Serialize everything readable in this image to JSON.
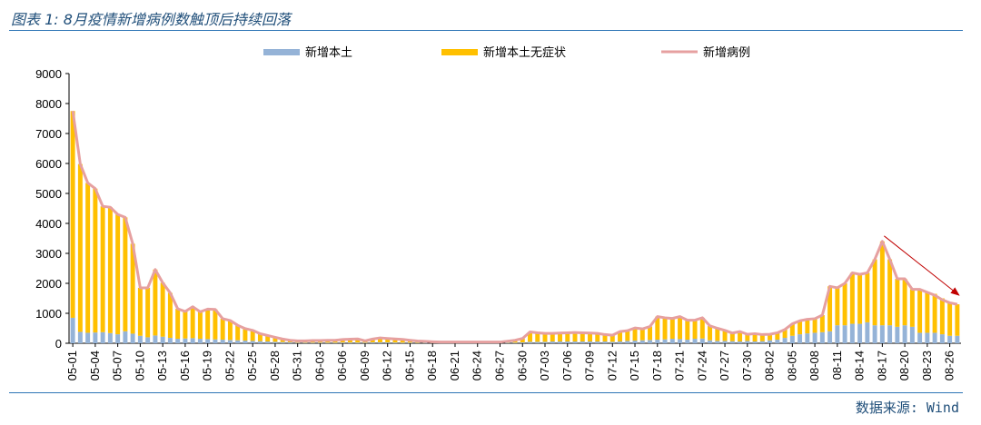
{
  "header": {
    "title": "图表 1: 8月疫情新增病例数触顶后持续回落"
  },
  "footer": {
    "source": "数据来源: Wind"
  },
  "colors": {
    "local": "#95b3d7",
    "asymptomatic": "#ffc000",
    "total": "#e6a0a0",
    "arrow": "#c00000",
    "axis": "#000000",
    "rule": "#2e75b6"
  },
  "chart_data": {
    "type": "bar",
    "stacked": true,
    "ylim": [
      0,
      9000
    ],
    "yticks": [
      0,
      1000,
      2000,
      3000,
      4000,
      5000,
      6000,
      7000,
      8000,
      9000
    ],
    "legend_position": "top",
    "grid": false,
    "series": [
      {
        "name": "新增本土",
        "kind": "bar"
      },
      {
        "name": "新增本土无症状",
        "kind": "bar"
      },
      {
        "name": "新增病例",
        "kind": "line"
      }
    ],
    "dates": [
      "05-01",
      "05-02",
      "05-03",
      "05-04",
      "05-05",
      "05-06",
      "05-07",
      "05-08",
      "05-09",
      "05-10",
      "05-11",
      "05-12",
      "05-13",
      "05-14",
      "05-15",
      "05-16",
      "05-17",
      "05-18",
      "05-19",
      "05-20",
      "05-21",
      "05-22",
      "05-23",
      "05-24",
      "05-25",
      "05-26",
      "05-27",
      "05-28",
      "05-29",
      "05-30",
      "05-31",
      "06-01",
      "06-02",
      "06-03",
      "06-04",
      "06-05",
      "06-06",
      "06-07",
      "06-08",
      "06-09",
      "06-10",
      "06-11",
      "06-12",
      "06-13",
      "06-14",
      "06-15",
      "06-16",
      "06-17",
      "06-18",
      "06-19",
      "06-20",
      "06-21",
      "06-22",
      "06-23",
      "06-24",
      "06-25",
      "06-26",
      "06-27",
      "06-28",
      "06-29",
      "06-30",
      "07-01",
      "07-02",
      "07-03",
      "07-04",
      "07-05",
      "07-06",
      "07-07",
      "07-08",
      "07-09",
      "07-10",
      "07-11",
      "07-12",
      "07-13",
      "07-14",
      "07-15",
      "07-16",
      "07-17",
      "07-18",
      "07-19",
      "07-20",
      "07-21",
      "07-22",
      "07-23",
      "07-24",
      "07-25",
      "07-26",
      "07-27",
      "07-28",
      "07-29",
      "07-30",
      "07-31",
      "08-01",
      "08-02",
      "08-03",
      "08-04",
      "08-05",
      "08-06",
      "08-07",
      "08-08",
      "08-09",
      "08-10",
      "08-11",
      "08-12",
      "08-13",
      "08-14",
      "08-15",
      "08-16",
      "08-17",
      "08-18",
      "08-19",
      "08-20",
      "08-21",
      "08-22",
      "08-23",
      "08-24",
      "08-25",
      "08-26",
      "08-27"
    ],
    "xticks": [
      "05-01",
      "05-04",
      "05-07",
      "05-10",
      "05-13",
      "05-16",
      "05-19",
      "05-22",
      "05-25",
      "05-28",
      "05-31",
      "06-03",
      "06-06",
      "06-09",
      "06-12",
      "06-15",
      "06-18",
      "06-21",
      "06-24",
      "06-27",
      "06-30",
      "07-03",
      "07-06",
      "07-09",
      "07-12",
      "07-15",
      "07-18",
      "07-21",
      "07-24",
      "07-27",
      "07-30",
      "08-02",
      "08-05",
      "08-08",
      "08-11",
      "08-14",
      "08-17",
      "08-20",
      "08-23",
      "08-26"
    ],
    "local": [
      850,
      380,
      350,
      360,
      370,
      340,
      300,
      400,
      320,
      250,
      200,
      260,
      220,
      180,
      150,
      160,
      170,
      150,
      140,
      130,
      120,
      110,
      100,
      90,
      80,
      70,
      60,
      50,
      40,
      30,
      20,
      20,
      20,
      20,
      20,
      20,
      25,
      25,
      25,
      20,
      30,
      30,
      30,
      25,
      20,
      20,
      15,
      15,
      10,
      10,
      10,
      10,
      10,
      10,
      10,
      10,
      10,
      10,
      20,
      20,
      30,
      50,
      50,
      50,
      60,
      60,
      60,
      60,
      60,
      60,
      60,
      60,
      50,
      60,
      80,
      90,
      100,
      110,
      120,
      130,
      150,
      140,
      120,
      150,
      160,
      100,
      80,
      80,
      70,
      60,
      80,
      60,
      70,
      100,
      120,
      180,
      250,
      300,
      330,
      350,
      370,
      400,
      600,
      600,
      650,
      650,
      700,
      600,
      600,
      600,
      550,
      600,
      550,
      350,
      350,
      350,
      300,
      250,
      250
    ],
    "asymptomatic": [
      6900,
      5600,
      5000,
      4800,
      4200,
      4200,
      4000,
      3800,
      3000,
      1600,
      1650,
      2200,
      1800,
      1500,
      1000,
      900,
      1050,
      900,
      1000,
      1000,
      700,
      650,
      500,
      400,
      350,
      250,
      200,
      150,
      100,
      70,
      60,
      60,
      70,
      70,
      80,
      80,
      100,
      110,
      120,
      60,
      110,
      150,
      130,
      120,
      110,
      80,
      60,
      50,
      40,
      30,
      30,
      30,
      30,
      30,
      30,
      30,
      30,
      30,
      50,
      80,
      130,
      330,
      300,
      280,
      270,
      280,
      290,
      300,
      290,
      280,
      270,
      230,
      220,
      330,
      340,
      420,
      380,
      450,
      770,
      720,
      680,
      750,
      650,
      620,
      690,
      480,
      420,
      350,
      270,
      330,
      220,
      260,
      220,
      200,
      230,
      280,
      400,
      450,
      470,
      470,
      570,
      1500,
      1250,
      1400,
      1700,
      1650,
      1650,
      2200,
      2800,
      2200,
      1600,
      1550,
      1250,
      1450,
      1350,
      1300,
      1200,
      1100,
      1050
    ],
    "total": [
      7750,
      5980,
      5350,
      5160,
      4570,
      4540,
      4300,
      4200,
      3320,
      1850,
      1850,
      2460,
      2020,
      1680,
      1150,
      1060,
      1220,
      1050,
      1140,
      1130,
      820,
      760,
      600,
      490,
      430,
      320,
      260,
      200,
      140,
      100,
      80,
      80,
      90,
      90,
      100,
      100,
      125,
      135,
      145,
      80,
      140,
      180,
      160,
      145,
      130,
      100,
      75,
      65,
      50,
      40,
      40,
      40,
      40,
      40,
      40,
      40,
      40,
      40,
      70,
      100,
      160,
      380,
      350,
      330,
      330,
      340,
      350,
      360,
      350,
      340,
      330,
      290,
      270,
      390,
      420,
      510,
      480,
      560,
      890,
      850,
      830,
      890,
      770,
      770,
      850,
      580,
      500,
      430,
      340,
      390,
      300,
      320,
      290,
      300,
      350,
      460,
      650,
      750,
      800,
      820,
      940,
      1900,
      1850,
      2000,
      2350,
      2300,
      2350,
      2800,
      3400,
      2800,
      2150,
      2150,
      1800,
      1800,
      1700,
      1600,
      1450,
      1350,
      1300
    ]
  }
}
